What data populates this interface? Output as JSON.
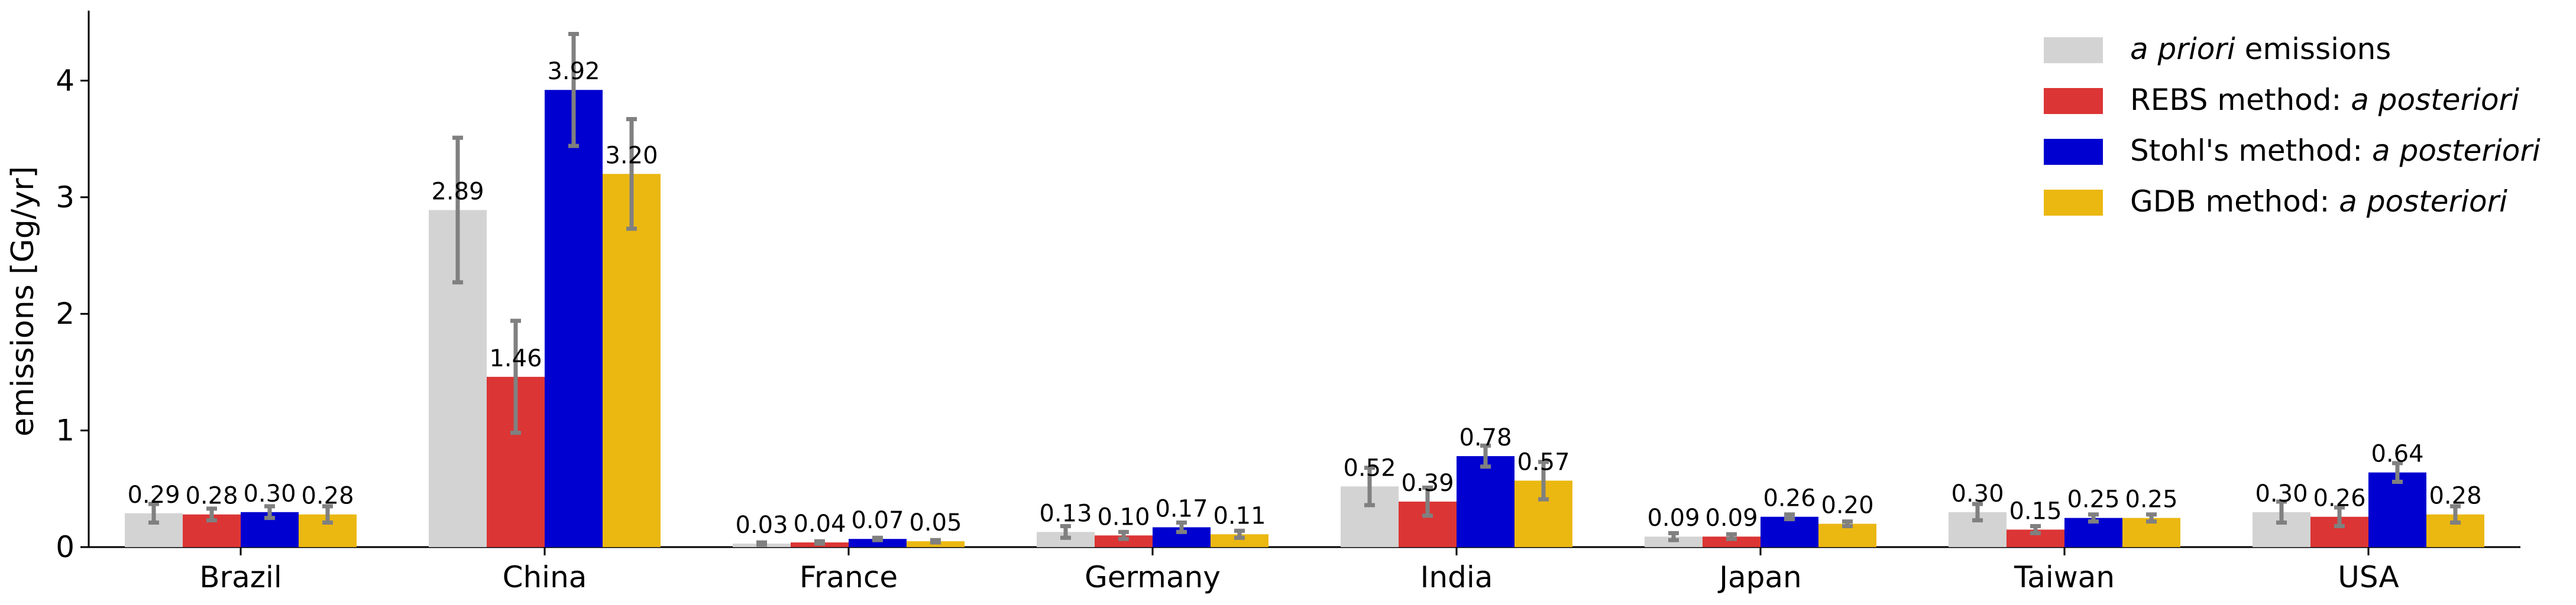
{
  "chart_data": {
    "type": "bar",
    "title": "",
    "xlabel": "",
    "ylabel": "emissions [Gg/yr]",
    "ylim": [
      0,
      4.6
    ],
    "yticks": [
      0,
      1,
      2,
      3,
      4
    ],
    "grid": false,
    "legend_position": "top-right",
    "categories": [
      "Brazil",
      "China",
      "France",
      "Germany",
      "India",
      "Japan",
      "Taiwan",
      "USA"
    ],
    "series": [
      {
        "name": "a priori emissions",
        "legend": [
          {
            "text": "a priori",
            "italic": true
          },
          {
            "text": " emissions",
            "italic": false
          }
        ],
        "color": "#d3d3d3",
        "values": [
          0.29,
          2.89,
          0.03,
          0.13,
          0.52,
          0.09,
          0.3,
          0.3
        ],
        "errors": [
          0.08,
          0.62,
          0.01,
          0.05,
          0.16,
          0.03,
          0.07,
          0.09
        ]
      },
      {
        "name": "REBS method: a posteriori",
        "legend": [
          {
            "text": "REBS method: ",
            "italic": false
          },
          {
            "text": "a posteriori",
            "italic": true
          }
        ],
        "color": "#dc3535",
        "values": [
          0.28,
          1.46,
          0.04,
          0.1,
          0.39,
          0.09,
          0.15,
          0.26
        ],
        "errors": [
          0.05,
          0.48,
          0.01,
          0.03,
          0.12,
          0.02,
          0.03,
          0.08
        ]
      },
      {
        "name": "Stohl's method: a posteriori",
        "legend": [
          {
            "text": "Stohl's method: ",
            "italic": false
          },
          {
            "text": "a posteriori",
            "italic": true
          }
        ],
        "color": "#0000d0",
        "values": [
          0.3,
          3.92,
          0.07,
          0.17,
          0.78,
          0.26,
          0.25,
          0.64
        ],
        "errors": [
          0.05,
          0.48,
          0.01,
          0.04,
          0.09,
          0.02,
          0.03,
          0.08
        ]
      },
      {
        "name": "GDB method: a posteriori",
        "legend": [
          {
            "text": "GDB method: ",
            "italic": false
          },
          {
            "text": "a posteriori",
            "italic": true
          }
        ],
        "color": "#ebb812",
        "values": [
          0.28,
          3.2,
          0.05,
          0.11,
          0.57,
          0.2,
          0.25,
          0.28
        ],
        "errors": [
          0.07,
          0.47,
          0.01,
          0.03,
          0.16,
          0.02,
          0.03,
          0.07
        ]
      }
    ],
    "value_labels": [
      [
        "0.29",
        "2.89",
        "0.03",
        "0.13",
        "0.52",
        "0.09",
        "0.30",
        "0.30"
      ],
      [
        "0.28",
        "1.46",
        "0.04",
        "0.10",
        "0.39",
        "0.09",
        "0.15",
        "0.26"
      ],
      [
        "0.30",
        "3.92",
        "0.07",
        "0.17",
        "0.78",
        "0.26",
        "0.25",
        "0.64"
      ],
      [
        "0.28",
        "3.20",
        "0.05",
        "0.11",
        "0.57",
        "0.20",
        "0.25",
        "0.28"
      ]
    ],
    "error_bar_color": "#808080"
  }
}
